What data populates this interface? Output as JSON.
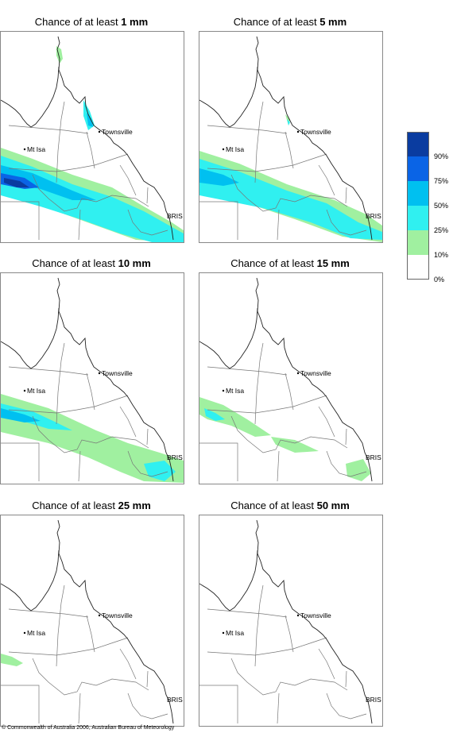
{
  "title_prefix": "Chance of at least",
  "panels": [
    {
      "amount": "1 mm"
    },
    {
      "amount": "5 mm"
    },
    {
      "amount": "10 mm"
    },
    {
      "amount": "15 mm"
    },
    {
      "amount": "25 mm"
    },
    {
      "amount": "50 mm"
    }
  ],
  "places": {
    "townsville": "Townsville",
    "mt_isa": "Mt Isa",
    "brisbane": "BRIS"
  },
  "legend": {
    "colors": [
      "#0a3ca0",
      "#0a64e6",
      "#00c0f0",
      "#30f0f0",
      "#a0f0a0",
      "#ffffff"
    ],
    "ticks": [
      "90%",
      "75%",
      "50%",
      "25%",
      "10%",
      "0%"
    ]
  },
  "copyright": "© Commonwealth of Australia 2006, Australian Bureau of Meteorology"
}
